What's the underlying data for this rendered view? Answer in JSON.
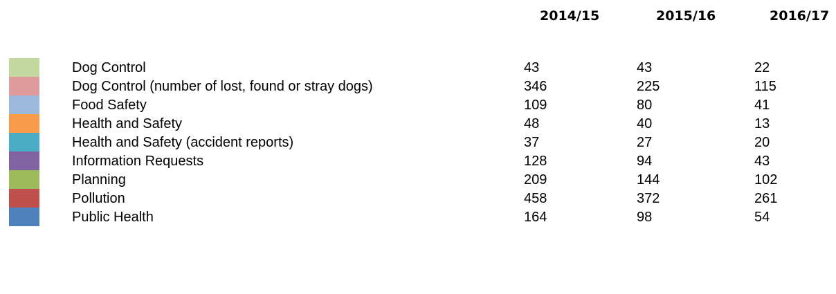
{
  "table": {
    "columns": [
      "2014/15",
      "2015/16",
      "2016/17"
    ],
    "rows": [
      {
        "color": "#c4d9a0",
        "label": "Dog Control",
        "values": [
          43,
          43,
          22
        ]
      },
      {
        "color": "#e09c9c",
        "label": "Dog Control (number of lost, found or stray dogs)",
        "values": [
          346,
          225,
          115
        ]
      },
      {
        "color": "#9cb9dd",
        "label": "Food Safety",
        "values": [
          109,
          80,
          41
        ]
      },
      {
        "color": "#f79a4a",
        "label": "Health and Safety",
        "values": [
          48,
          40,
          13
        ]
      },
      {
        "color": "#4bacc6",
        "label": "Health and Safety (accident reports)",
        "values": [
          37,
          27,
          20
        ]
      },
      {
        "color": "#8064a2",
        "label": "Information Requests",
        "values": [
          128,
          94,
          43
        ]
      },
      {
        "color": "#9bbb59",
        "label": "Planning",
        "values": [
          209,
          144,
          102
        ]
      },
      {
        "color": "#c0504d",
        "label": "Pollution",
        "values": [
          458,
          372,
          261
        ]
      },
      {
        "color": "#4f81bd",
        "label": "Public Health",
        "values": [
          164,
          98,
          54
        ]
      }
    ]
  }
}
